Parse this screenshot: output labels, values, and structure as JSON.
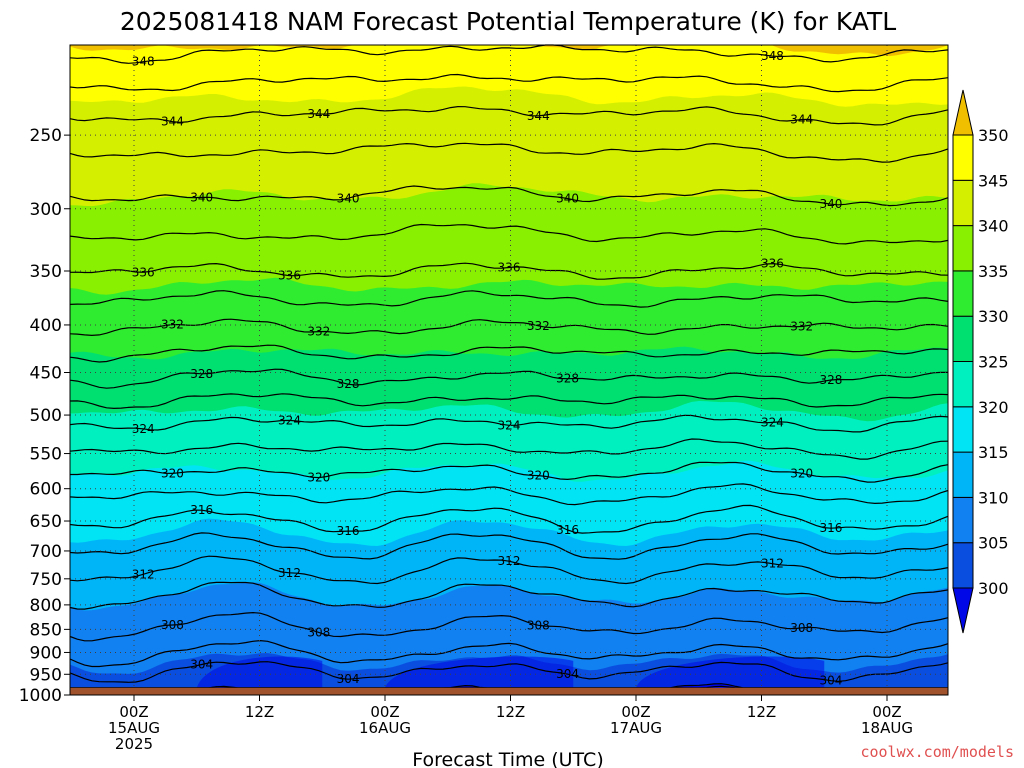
{
  "title": "2025081418 NAM Forecast Potential Temperature (K) for KATL",
  "credit": "coolwx.com/models",
  "chart_data": {
    "type": "heatmap",
    "title": "2025081418 NAM Forecast Potential Temperature (K) for KATL",
    "xlabel": "Forecast Time (UTC)",
    "ylabel": "",
    "y_scale": "log",
    "ylim": [
      1000,
      200
    ],
    "y_ticks": [
      250,
      300,
      350,
      400,
      450,
      500,
      550,
      600,
      650,
      700,
      750,
      800,
      850,
      900,
      950,
      1000
    ],
    "x_ticks": [
      {
        "line1": "00Z",
        "line2": "15AUG",
        "line3": "2025"
      },
      {
        "line1": "12Z",
        "line2": "",
        "line3": ""
      },
      {
        "line1": "00Z",
        "line2": "16AUG",
        "line3": ""
      },
      {
        "line1": "12Z",
        "line2": "",
        "line3": ""
      },
      {
        "line1": "00Z",
        "line2": "17AUG",
        "line3": ""
      },
      {
        "line1": "12Z",
        "line2": "",
        "line3": ""
      },
      {
        "line1": "00Z",
        "line2": "18AUG",
        "line3": ""
      }
    ],
    "colorbar": {
      "levels": [
        300,
        305,
        310,
        315,
        320,
        325,
        330,
        335,
        340,
        345,
        350
      ],
      "labels": [
        "300",
        "305",
        "310",
        "315",
        "320",
        "325",
        "330",
        "335",
        "340",
        "345",
        "350"
      ],
      "colors": [
        "#0008e8",
        "#0a4ee0",
        "#1180f0",
        "#00b4f8",
        "#00e4f4",
        "#00f0c0",
        "#00e070",
        "#30ec30",
        "#88f000",
        "#d4f000",
        "#ffff00",
        "#f0c000"
      ]
    },
    "contour_levels": [
      {
        "value": 300,
        "label": ""
      },
      {
        "value": 302,
        "label": ""
      },
      {
        "value": 304,
        "label": "304"
      },
      {
        "value": 306,
        "label": ""
      },
      {
        "value": 308,
        "label": "308"
      },
      {
        "value": 310,
        "label": ""
      },
      {
        "value": 312,
        "label": "312"
      },
      {
        "value": 314,
        "label": ""
      },
      {
        "value": 316,
        "label": "316"
      },
      {
        "value": 318,
        "label": ""
      },
      {
        "value": 320,
        "label": "320"
      },
      {
        "value": 322,
        "label": ""
      },
      {
        "value": 324,
        "label": "324"
      },
      {
        "value": 326,
        "label": ""
      },
      {
        "value": 328,
        "label": "328"
      },
      {
        "value": 330,
        "label": ""
      },
      {
        "value": 332,
        "label": "332"
      },
      {
        "value": 334,
        "label": ""
      },
      {
        "value": 336,
        "label": "336"
      },
      {
        "value": 338,
        "label": ""
      },
      {
        "value": 340,
        "label": "340"
      },
      {
        "value": 342,
        "label": ""
      },
      {
        "value": 344,
        "label": "344"
      },
      {
        "value": 346,
        "label": ""
      },
      {
        "value": 348,
        "label": "348"
      }
    ],
    "profile": {
      "pressure": [
        1000,
        975,
        950,
        925,
        900,
        850,
        800,
        750,
        700,
        650,
        600,
        550,
        500,
        450,
        400,
        350,
        300,
        250,
        210,
        200
      ],
      "theta": [
        303.5,
        303.0,
        303.5,
        304.8,
        306.0,
        307.8,
        309.3,
        311.3,
        313.6,
        315.9,
        318.5,
        321.6,
        324.6,
        328.4,
        332.2,
        336.0,
        339.4,
        342.7,
        347.0,
        348.5
      ]
    },
    "surface": {
      "pressure": 975,
      "color": "#a0522d"
    },
    "grid": true
  }
}
